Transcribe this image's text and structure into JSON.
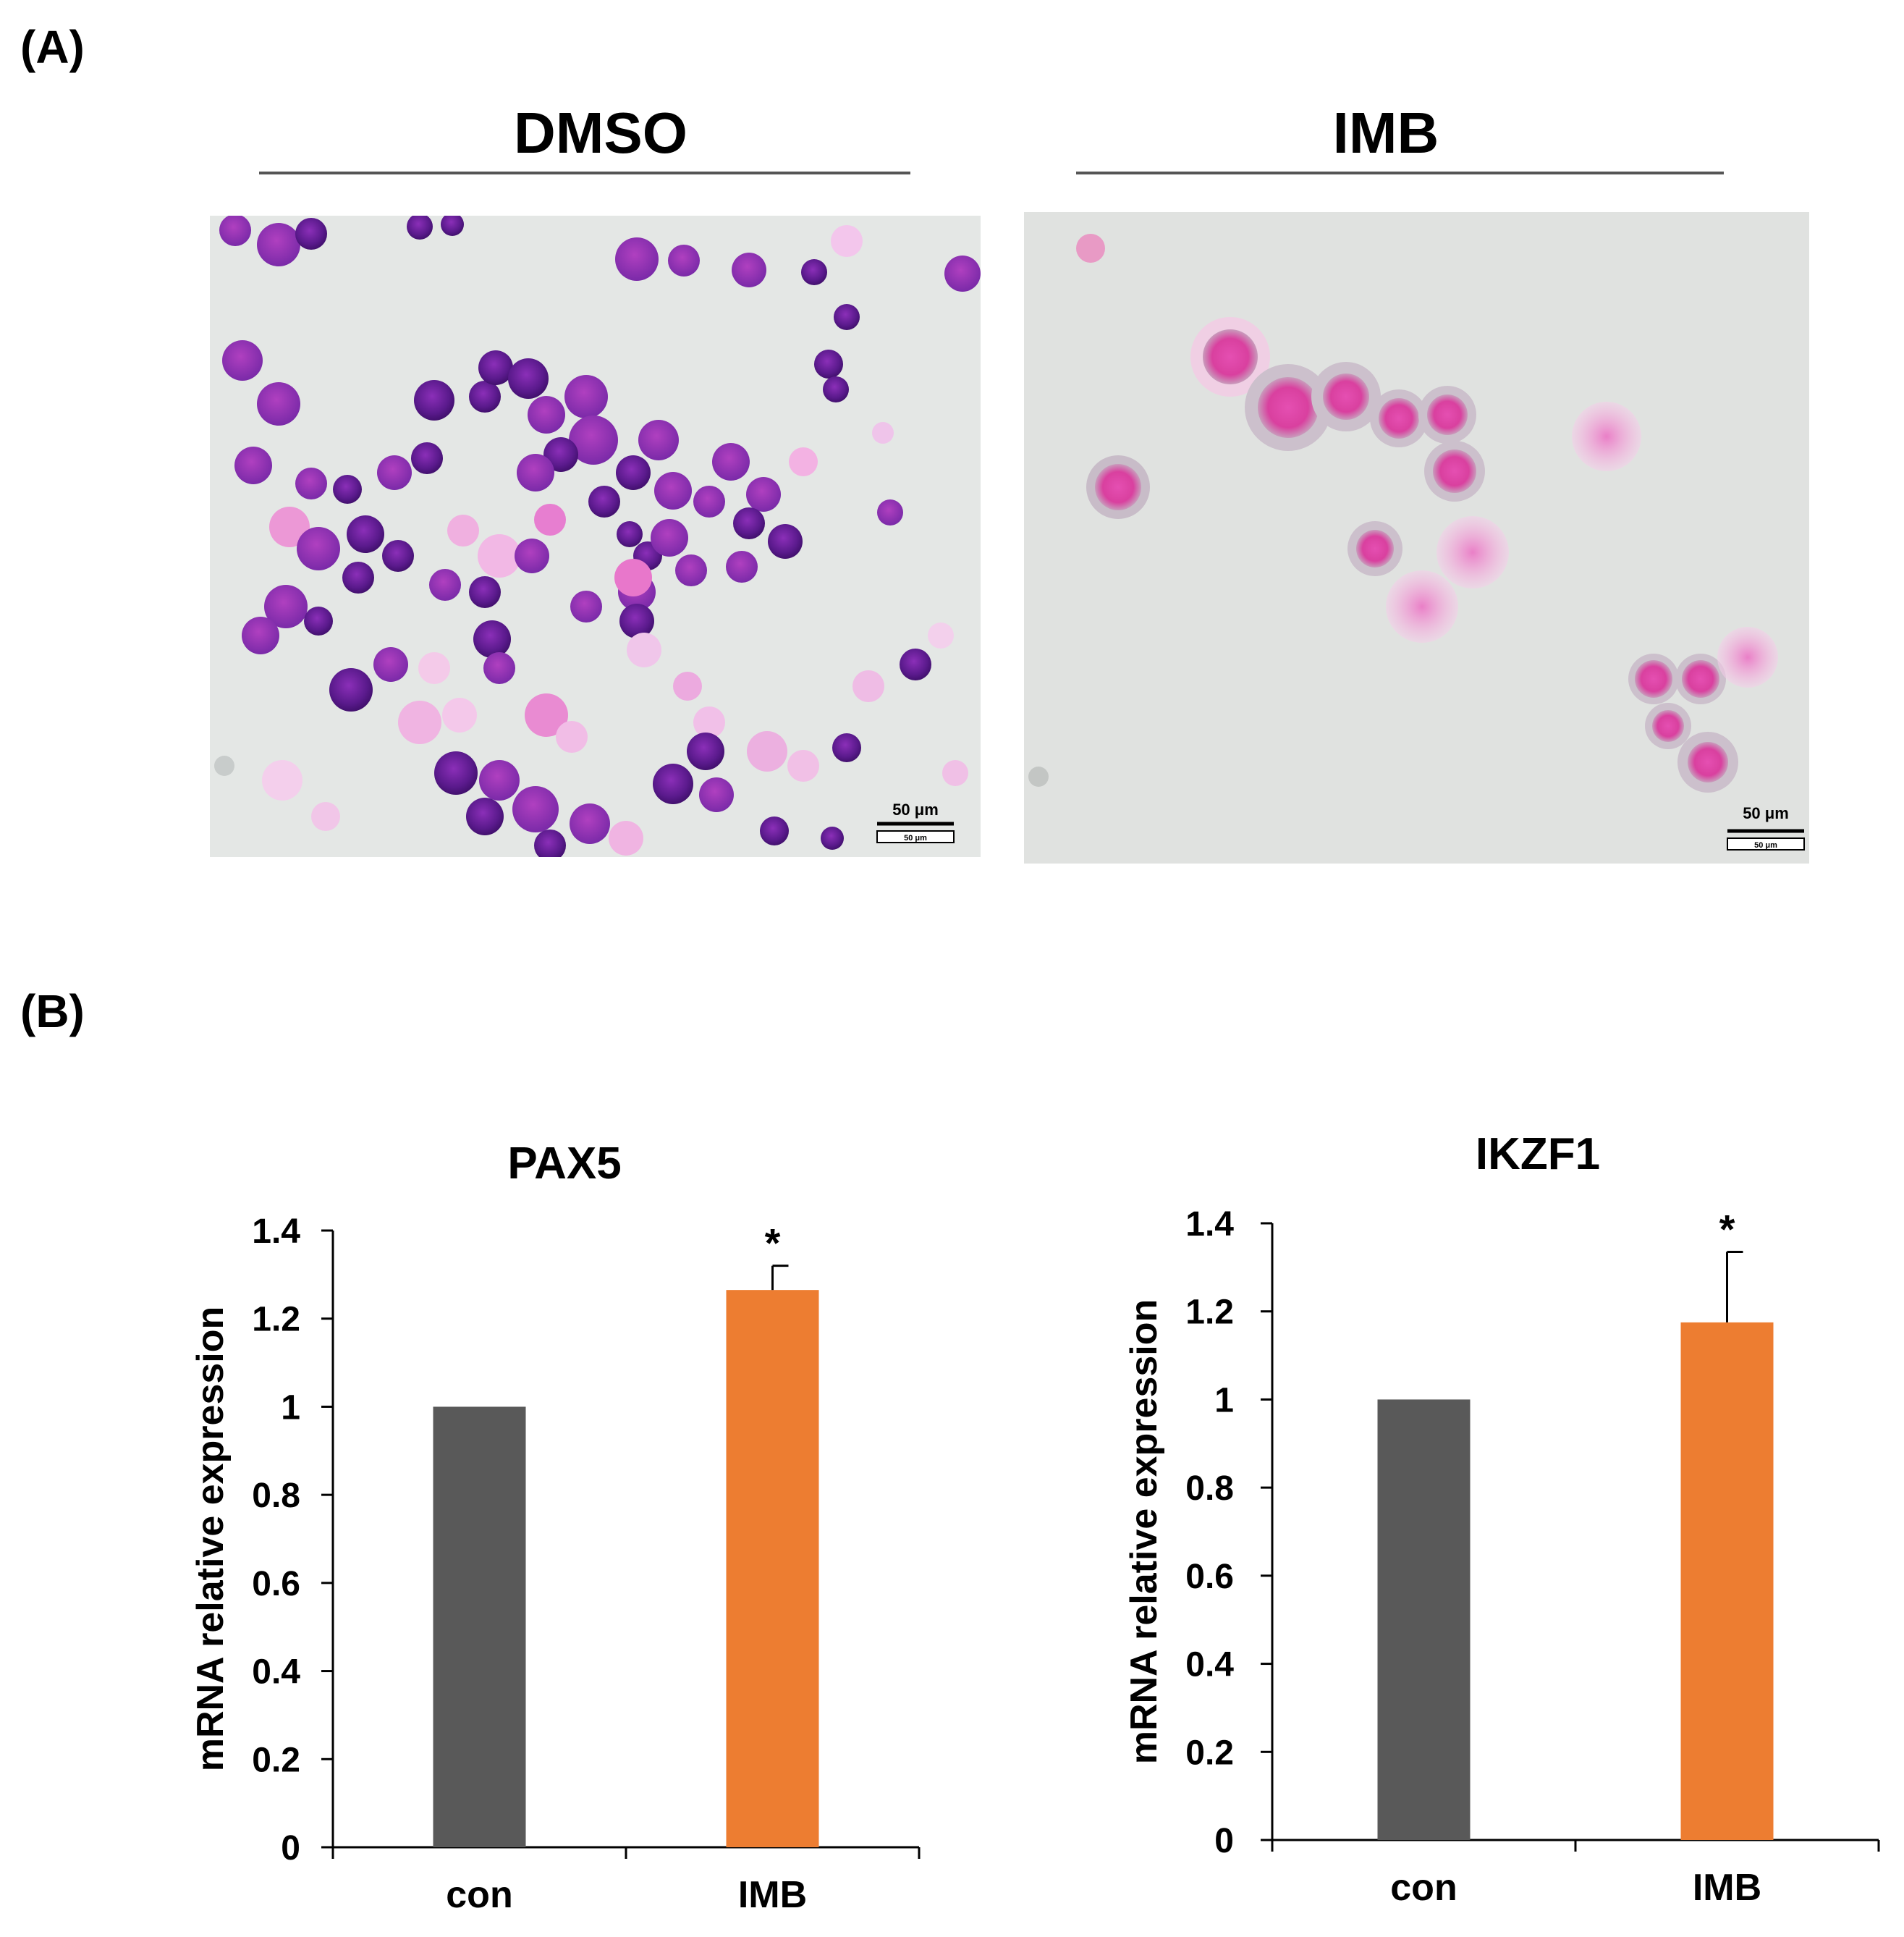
{
  "panel_a": {
    "label": "(A)",
    "conditions": [
      {
        "title": "DMSO",
        "scale_label": "50 μm",
        "scale_small": "50 μm"
      },
      {
        "title": "IMB",
        "scale_label": "50 μm",
        "scale_small": "50 μm"
      }
    ]
  },
  "panel_b": {
    "label": "(B)"
  },
  "chart_data": [
    {
      "type": "bar",
      "title": "PAX5",
      "categories": [
        "con",
        "IMB"
      ],
      "values": [
        1.0,
        1.265
      ],
      "errors": [
        0.0,
        0.055
      ],
      "colors": [
        "#595959",
        "#ed7d31"
      ],
      "significance": [
        "",
        "*"
      ],
      "xlabel": "",
      "ylabel": "mRNA relative expression",
      "ylim": [
        0,
        1.4
      ],
      "yticks": [
        0,
        0.2,
        0.4,
        0.6,
        0.8,
        1,
        1.2,
        1.4
      ],
      "ytick_labels": [
        "0",
        "0.2",
        "0.4",
        "0.6",
        "0.8",
        "1",
        "1.2",
        "1.4"
      ],
      "grid": false
    },
    {
      "type": "bar",
      "title": "IKZF1",
      "categories": [
        "con",
        "IMB"
      ],
      "values": [
        1.0,
        1.175
      ],
      "errors": [
        0.0,
        0.16
      ],
      "colors": [
        "#595959",
        "#ed7d31"
      ],
      "significance": [
        "",
        "*"
      ],
      "xlabel": "",
      "ylabel": "mRNA relative expression",
      "ylim": [
        0,
        1.4
      ],
      "yticks": [
        0,
        0.2,
        0.4,
        0.6,
        0.8,
        1,
        1.2,
        1.4
      ],
      "ytick_labels": [
        "0",
        "0.2",
        "0.4",
        "0.6",
        "0.8",
        "1",
        "1.2",
        "1.4"
      ],
      "grid": false
    }
  ]
}
